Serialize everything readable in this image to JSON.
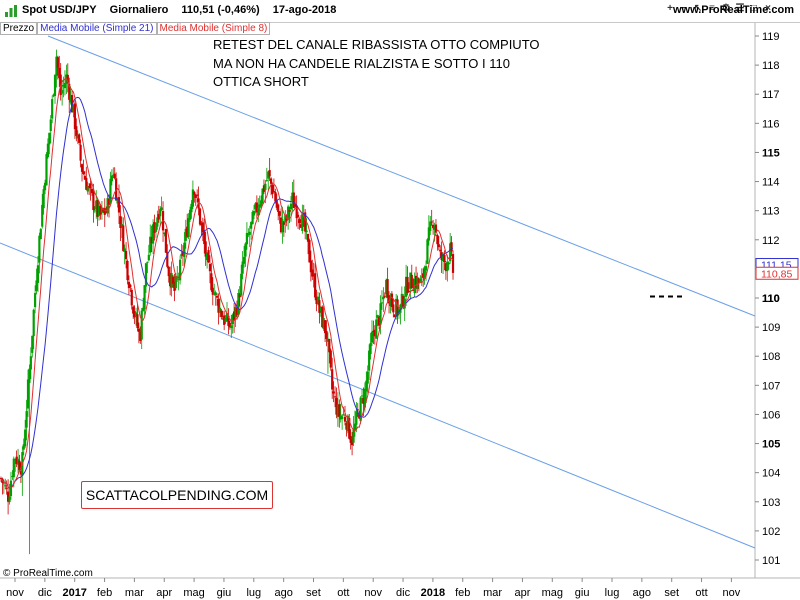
{
  "header": {
    "symbol": "Spot USD/JPY",
    "period": "Giornaliero",
    "last": "110,51 (-0,46%)",
    "date": "17-ago-2018",
    "site": "www.ProRealTime.com",
    "toolbar_icons": [
      "zoom-in-icon",
      "zoom-out-icon",
      "cursor-icon",
      "list-icon",
      "settings-icon",
      "menu-icon",
      "maximize-icon",
      "close-icon"
    ],
    "toolbar_glyphs": [
      "+",
      "−",
      "↖",
      "≡",
      "⚙",
      "☰",
      "□",
      "×"
    ]
  },
  "legend": {
    "price": "Prezzo",
    "ma21": "Media Mobile (Simple 21)",
    "ma8": "Media Mobile (Simple 8)"
  },
  "annotation": [
    "RETEST DEL CANALE RIBASSISTA OTTO COMPIUTO",
    "MA NON HA CANDELE RIALZISTA E SOTTO I 110",
    "OTTICA SHORT"
  ],
  "watermark": "SCATTACOLPENDING.COM",
  "credit": "© ProRealTime.com",
  "colors": {
    "up": "#00a000",
    "down": "#cc0000",
    "ma21": "#3030d0",
    "ma8": "#e03030",
    "channel": "#6a9fe8",
    "support": "#000000",
    "ma21_tag": "#3030d0",
    "ma8_tag": "#e03030"
  },
  "chart_data": {
    "type": "candlestick",
    "y_axis": {
      "ticks": [
        101,
        102,
        103,
        104,
        105,
        106,
        107,
        108,
        109,
        110,
        111,
        112,
        113,
        114,
        115,
        116,
        117,
        118,
        119
      ],
      "bold_ticks": [
        105,
        110,
        115
      ],
      "range": [
        100.6,
        119.4
      ]
    },
    "x_axis": {
      "labels": [
        "nov",
        "dic",
        "2017",
        "feb",
        "mar",
        "apr",
        "mag",
        "giu",
        "lug",
        "ago",
        "set",
        "ott",
        "nov",
        "dic",
        "2018",
        "feb",
        "mar",
        "apr",
        "mag",
        "giu",
        "lug",
        "ago",
        "set",
        "ott",
        "nov"
      ],
      "bold_labels": [
        "2017",
        "2018"
      ]
    },
    "price_tags": [
      {
        "label": "111,15",
        "series": "ma21",
        "value": 111.15
      },
      {
        "label": "110,85",
        "series": "ma8",
        "value": 110.85
      },
      {
        "label": "110",
        "series": "level",
        "value": 110.0
      }
    ],
    "keypoints": [
      {
        "m": 0.0,
        "p": 103.8
      },
      {
        "m": 0.25,
        "p": 103.2
      },
      {
        "m": 0.45,
        "p": 104.6
      },
      {
        "m": 0.7,
        "p": 104.2
      },
      {
        "m": 0.95,
        "p": 107.5
      },
      {
        "m": 1.2,
        "p": 111.0
      },
      {
        "m": 1.45,
        "p": 114.0
      },
      {
        "m": 1.7,
        "p": 116.5
      },
      {
        "m": 1.85,
        "p": 118.4
      },
      {
        "m": 2.0,
        "p": 117.0
      },
      {
        "m": 2.2,
        "p": 117.6
      },
      {
        "m": 2.45,
        "p": 116.2
      },
      {
        "m": 2.7,
        "p": 114.5
      },
      {
        "m": 3.0,
        "p": 113.5
      },
      {
        "m": 3.3,
        "p": 112.8
      },
      {
        "m": 3.55,
        "p": 113.0
      },
      {
        "m": 3.75,
        "p": 114.5
      },
      {
        "m": 3.95,
        "p": 113.0
      },
      {
        "m": 4.2,
        "p": 111.2
      },
      {
        "m": 4.45,
        "p": 109.6
      },
      {
        "m": 4.65,
        "p": 108.6
      },
      {
        "m": 4.85,
        "p": 111.0
      },
      {
        "m": 5.1,
        "p": 112.3
      },
      {
        "m": 5.35,
        "p": 113.3
      },
      {
        "m": 5.6,
        "p": 111.0
      },
      {
        "m": 5.8,
        "p": 110.2
      },
      {
        "m": 6.0,
        "p": 111.0
      },
      {
        "m": 6.25,
        "p": 112.5
      },
      {
        "m": 6.45,
        "p": 114.0
      },
      {
        "m": 6.7,
        "p": 112.5
      },
      {
        "m": 6.95,
        "p": 110.9
      },
      {
        "m": 7.2,
        "p": 110.0
      },
      {
        "m": 7.45,
        "p": 109.3
      },
      {
        "m": 7.7,
        "p": 109.0
      },
      {
        "m": 7.95,
        "p": 109.9
      },
      {
        "m": 8.2,
        "p": 111.8
      },
      {
        "m": 8.45,
        "p": 112.7
      },
      {
        "m": 8.7,
        "p": 113.5
      },
      {
        "m": 8.95,
        "p": 114.2
      },
      {
        "m": 9.15,
        "p": 113.6
      },
      {
        "m": 9.35,
        "p": 112.5
      },
      {
        "m": 9.55,
        "p": 112.6
      },
      {
        "m": 9.75,
        "p": 113.4
      },
      {
        "m": 9.95,
        "p": 113.0
      },
      {
        "m": 10.15,
        "p": 112.5
      },
      {
        "m": 10.4,
        "p": 111.0
      },
      {
        "m": 10.65,
        "p": 109.6
      },
      {
        "m": 10.9,
        "p": 108.8
      },
      {
        "m": 11.1,
        "p": 106.8
      },
      {
        "m": 11.3,
        "p": 106.0
      },
      {
        "m": 11.55,
        "p": 105.9
      },
      {
        "m": 11.75,
        "p": 105.1
      },
      {
        "m": 11.95,
        "p": 106.0
      },
      {
        "m": 12.2,
        "p": 106.8
      },
      {
        "m": 12.45,
        "p": 108.8
      },
      {
        "m": 12.7,
        "p": 109.4
      },
      {
        "m": 12.9,
        "p": 110.5
      },
      {
        "m": 13.1,
        "p": 109.8
      },
      {
        "m": 13.35,
        "p": 109.5
      },
      {
        "m": 13.6,
        "p": 110.5
      },
      {
        "m": 13.85,
        "p": 110.6
      },
      {
        "m": 14.1,
        "p": 110.5
      },
      {
        "m": 14.35,
        "p": 112.2
      },
      {
        "m": 14.5,
        "p": 112.8
      },
      {
        "m": 14.7,
        "p": 111.4
      },
      {
        "m": 14.9,
        "p": 111.2
      },
      {
        "m": 15.05,
        "p": 111.6
      },
      {
        "m": 15.2,
        "p": 110.5
      }
    ]
  }
}
